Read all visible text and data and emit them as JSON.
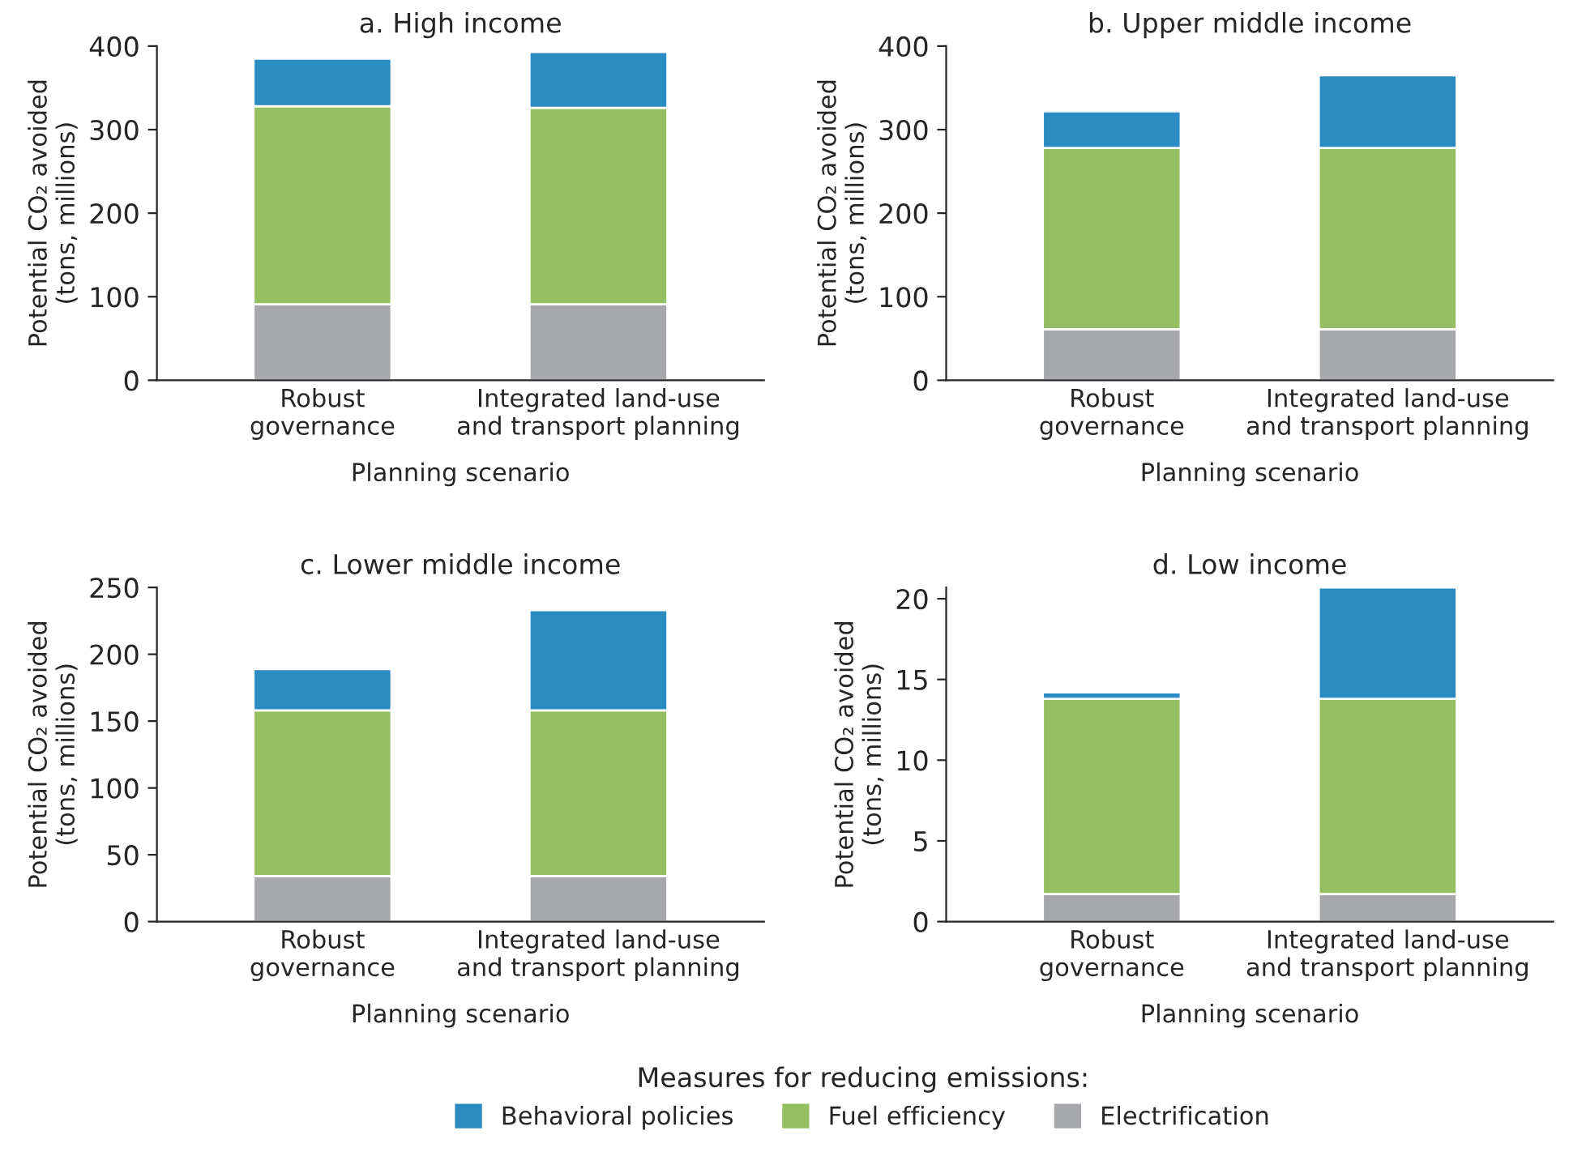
{
  "chart_data": [
    {
      "type": "bar",
      "stacked": true,
      "title": "a. High income",
      "xlabel": "Planning scenario",
      "ylabel": "Potential CO₂ avoided\n(tons, millions)",
      "categories": [
        "Robust\ngovernance",
        "Integrated land-use\nand transport planning"
      ],
      "ylim": [
        0,
        400
      ],
      "yticks": [
        0,
        100,
        200,
        300,
        400
      ],
      "grid": false,
      "legend": "bottom",
      "legend_title": "Measures for reducing emissions:",
      "series": [
        {
          "name": "Electrification",
          "color": "#a7a8ac",
          "values": [
            91,
            91
          ]
        },
        {
          "name": "Fuel efficiency",
          "color": "#95c062",
          "values": [
            237,
            235
          ]
        },
        {
          "name": "Behavioral policies",
          "color": "#2b8bc3",
          "values": [
            57,
            67
          ]
        }
      ]
    },
    {
      "type": "bar",
      "stacked": true,
      "title": "b. Upper middle income",
      "xlabel": "Planning scenario",
      "ylabel": "Potential CO₂ avoided\n(tons, millions)",
      "categories": [
        "Robust\ngovernance",
        "Integrated land-use\nand transport planning"
      ],
      "ylim": [
        0,
        400
      ],
      "yticks": [
        0,
        100,
        200,
        300,
        400
      ],
      "grid": false,
      "series": [
        {
          "color": "#a7a8ac",
          "values": [
            61,
            61
          ]
        },
        {
          "color": "#95c062",
          "values": [
            217,
            217
          ]
        },
        {
          "color": "#2b8bc3",
          "values": [
            44,
            87
          ]
        }
      ]
    },
    {
      "type": "bar",
      "stacked": true,
      "title": "c. Lower middle income",
      "xlabel": "Planning scenario",
      "ylabel": "Potential CO₂ avoided\n(tons, millions)",
      "categories": [
        "Robust\ngovernance",
        "Integrated land-use\nand transport planning"
      ],
      "ylim": [
        0,
        250
      ],
      "yticks": [
        0,
        50,
        100,
        150,
        200,
        250
      ],
      "grid": false,
      "series": [
        {
          "color": "#a7a8ac",
          "values": [
            34,
            34
          ]
        },
        {
          "color": "#95c062",
          "values": [
            124,
            124
          ]
        },
        {
          "color": "#2b8bc3",
          "values": [
            31,
            75
          ]
        }
      ]
    },
    {
      "type": "bar",
      "stacked": true,
      "title": "d. Low income",
      "xlabel": "Planning scenario",
      "ylabel": "Potential CO₂ avoided\n(tons, millions)",
      "categories": [
        "Robust\ngovernance",
        "Integrated land-use\nand transport planning"
      ],
      "ylim": [
        0,
        20.7
      ],
      "yticks": [
        0,
        5,
        10,
        15,
        20
      ],
      "grid": false,
      "series": [
        {
          "color": "#a7a8ac",
          "values": [
            1.7,
            1.7
          ]
        },
        {
          "color": "#95c062",
          "values": [
            12.1,
            12.1
          ]
        },
        {
          "color": "#2b8bc3",
          "values": [
            0.4,
            6.9
          ]
        }
      ]
    }
  ]
}
